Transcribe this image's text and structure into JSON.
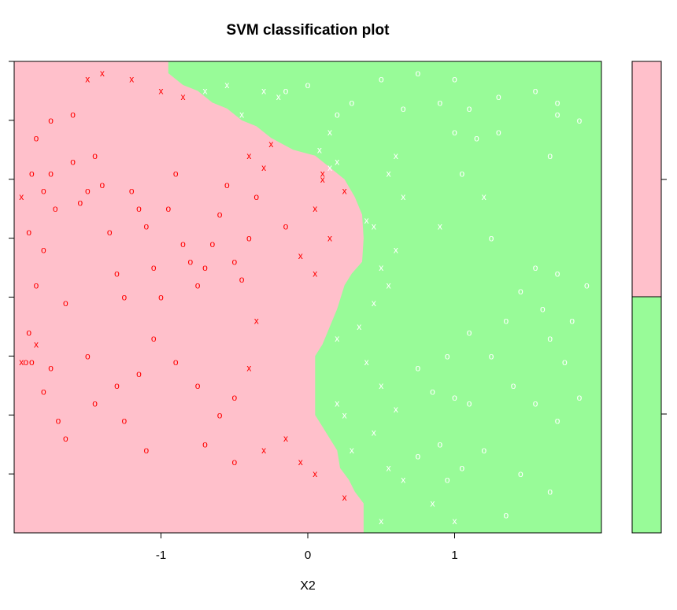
{
  "chart_data": {
    "type": "scatter",
    "title": "SVM classification plot",
    "xlabel": "X2",
    "ylabel": "",
    "xlim": [
      -2.0,
      2.0
    ],
    "ylim": [
      -2.0,
      2.0
    ],
    "x_ticks": [
      -1,
      0,
      1
    ],
    "colors": {
      "region_pink": "#ffc0cb",
      "region_green": "#98fb98",
      "mark_red": "#ff0000",
      "mark_white": "#ffffff",
      "axis": "#000000"
    },
    "boundary": [
      [
        -0.95,
        2.0
      ],
      [
        -0.95,
        1.9
      ],
      [
        -0.85,
        1.8
      ],
      [
        -0.75,
        1.75
      ],
      [
        -0.65,
        1.65
      ],
      [
        -0.55,
        1.6
      ],
      [
        -0.45,
        1.5
      ],
      [
        -0.35,
        1.45
      ],
      [
        -0.25,
        1.35
      ],
      [
        -0.1,
        1.25
      ],
      [
        0.05,
        1.2
      ],
      [
        0.15,
        1.1
      ],
      [
        0.25,
        1.0
      ],
      [
        0.32,
        0.85
      ],
      [
        0.37,
        0.7
      ],
      [
        0.38,
        0.5
      ],
      [
        0.37,
        0.3
      ],
      [
        0.3,
        0.2
      ],
      [
        0.25,
        0.1
      ],
      [
        0.2,
        -0.1
      ],
      [
        0.15,
        -0.25
      ],
      [
        0.1,
        -0.4
      ],
      [
        0.05,
        -0.5
      ],
      [
        0.05,
        -1.0
      ],
      [
        0.1,
        -1.1
      ],
      [
        0.15,
        -1.2
      ],
      [
        0.2,
        -1.3
      ],
      [
        0.22,
        -1.45
      ],
      [
        0.28,
        -1.55
      ],
      [
        0.32,
        -1.65
      ],
      [
        0.38,
        -1.75
      ],
      [
        0.38,
        -2.0
      ]
    ],
    "legend_classes": [
      "pink",
      "green"
    ],
    "points": [
      {
        "x": -1.95,
        "y": 0.85,
        "label": "x"
      },
      {
        "x": -1.9,
        "y": 0.55,
        "label": "o"
      },
      {
        "x": -1.88,
        "y": 1.05,
        "label": "o"
      },
      {
        "x": -1.85,
        "y": 1.35,
        "label": "o"
      },
      {
        "x": -1.8,
        "y": 0.9,
        "label": "o"
      },
      {
        "x": -1.75,
        "y": 1.05,
        "label": "o"
      },
      {
        "x": -1.72,
        "y": 0.75,
        "label": "o"
      },
      {
        "x": -1.8,
        "y": 0.4,
        "label": "o"
      },
      {
        "x": -1.85,
        "y": 0.1,
        "label": "o"
      },
      {
        "x": -1.9,
        "y": -0.3,
        "label": "o"
      },
      {
        "x": -1.95,
        "y": -0.55,
        "label": "x"
      },
      {
        "x": -1.92,
        "y": -0.55,
        "label": "o"
      },
      {
        "x": -1.88,
        "y": -0.55,
        "label": "o"
      },
      {
        "x": -1.8,
        "y": -0.8,
        "label": "o"
      },
      {
        "x": -1.75,
        "y": -0.6,
        "label": "o"
      },
      {
        "x": -1.7,
        "y": -1.05,
        "label": "o"
      },
      {
        "x": -1.65,
        "y": -1.2,
        "label": "o"
      },
      {
        "x": -1.6,
        "y": 1.15,
        "label": "o"
      },
      {
        "x": -1.55,
        "y": 0.8,
        "label": "o"
      },
      {
        "x": -1.5,
        "y": 0.9,
        "label": "o"
      },
      {
        "x": -1.45,
        "y": 1.2,
        "label": "o"
      },
      {
        "x": -1.4,
        "y": 0.95,
        "label": "o"
      },
      {
        "x": -1.35,
        "y": 0.55,
        "label": "o"
      },
      {
        "x": -1.3,
        "y": 0.2,
        "label": "o"
      },
      {
        "x": -1.25,
        "y": 0.0,
        "label": "o"
      },
      {
        "x": -1.2,
        "y": 0.9,
        "label": "o"
      },
      {
        "x": -1.15,
        "y": 0.75,
        "label": "o"
      },
      {
        "x": -1.1,
        "y": 0.6,
        "label": "o"
      },
      {
        "x": -1.05,
        "y": 0.25,
        "label": "o"
      },
      {
        "x": -1.0,
        "y": 0.0,
        "label": "o"
      },
      {
        "x": -0.95,
        "y": 0.75,
        "label": "o"
      },
      {
        "x": -0.9,
        "y": 1.05,
        "label": "o"
      },
      {
        "x": -0.85,
        "y": 0.45,
        "label": "o"
      },
      {
        "x": -0.8,
        "y": 0.3,
        "label": "o"
      },
      {
        "x": -0.75,
        "y": 0.1,
        "label": "o"
      },
      {
        "x": -0.7,
        "y": 0.25,
        "label": "o"
      },
      {
        "x": -0.65,
        "y": 0.45,
        "label": "o"
      },
      {
        "x": -0.6,
        "y": 0.7,
        "label": "o"
      },
      {
        "x": -0.55,
        "y": 0.95,
        "label": "o"
      },
      {
        "x": -0.5,
        "y": 0.3,
        "label": "o"
      },
      {
        "x": -0.45,
        "y": 0.15,
        "label": "o"
      },
      {
        "x": -0.4,
        "y": 0.5,
        "label": "o"
      },
      {
        "x": -0.35,
        "y": 0.85,
        "label": "o"
      },
      {
        "x": -0.3,
        "y": 1.1,
        "label": "x"
      },
      {
        "x": -0.25,
        "y": 1.3,
        "label": "x"
      },
      {
        "x": -0.15,
        "y": 0.6,
        "label": "o"
      },
      {
        "x": 0.05,
        "y": 0.75,
        "label": "x"
      },
      {
        "x": 0.1,
        "y": 1.0,
        "label": "x"
      },
      {
        "x": 0.15,
        "y": 1.1,
        "label": "x"
      },
      {
        "x": 0.2,
        "y": 1.15,
        "label": "x"
      },
      {
        "x": 0.25,
        "y": 0.9,
        "label": "x"
      },
      {
        "x": 0.15,
        "y": 0.5,
        "label": "x"
      },
      {
        "x": 0.05,
        "y": 0.2,
        "label": "x"
      },
      {
        "x": 0.4,
        "y": 0.65,
        "label": "x"
      },
      {
        "x": 0.45,
        "y": 0.6,
        "label": "x"
      },
      {
        "x": -1.5,
        "y": 1.85,
        "label": "x"
      },
      {
        "x": -1.4,
        "y": 1.9,
        "label": "x"
      },
      {
        "x": -1.2,
        "y": 1.85,
        "label": "x"
      },
      {
        "x": -1.0,
        "y": 1.75,
        "label": "x"
      },
      {
        "x": -1.6,
        "y": 1.55,
        "label": "o"
      },
      {
        "x": -1.75,
        "y": 1.5,
        "label": "o"
      },
      {
        "x": -1.85,
        "y": -0.4,
        "label": "x"
      },
      {
        "x": -1.5,
        "y": -0.5,
        "label": "o"
      },
      {
        "x": -1.3,
        "y": -0.75,
        "label": "o"
      },
      {
        "x": -1.15,
        "y": -0.65,
        "label": "o"
      },
      {
        "x": -1.05,
        "y": -0.35,
        "label": "o"
      },
      {
        "x": -0.9,
        "y": -0.55,
        "label": "o"
      },
      {
        "x": -0.75,
        "y": -0.75,
        "label": "o"
      },
      {
        "x": -0.6,
        "y": -1.0,
        "label": "o"
      },
      {
        "x": -0.5,
        "y": -0.85,
        "label": "o"
      },
      {
        "x": -0.4,
        "y": -0.6,
        "label": "x"
      },
      {
        "x": -0.3,
        "y": -1.3,
        "label": "x"
      },
      {
        "x": -0.15,
        "y": -1.2,
        "label": "x"
      },
      {
        "x": -0.05,
        "y": -1.4,
        "label": "x"
      },
      {
        "x": -0.5,
        "y": -1.4,
        "label": "o"
      },
      {
        "x": -0.7,
        "y": -1.25,
        "label": "o"
      },
      {
        "x": -1.1,
        "y": -1.3,
        "label": "o"
      },
      {
        "x": -1.25,
        "y": -1.05,
        "label": "o"
      },
      {
        "x": -1.45,
        "y": -0.9,
        "label": "o"
      },
      {
        "x": -0.85,
        "y": 1.7,
        "label": "x"
      },
      {
        "x": -0.7,
        "y": 1.75,
        "label": "x"
      },
      {
        "x": -0.55,
        "y": 1.8,
        "label": "x"
      },
      {
        "x": -0.45,
        "y": 1.55,
        "label": "x"
      },
      {
        "x": -0.3,
        "y": 1.75,
        "label": "x"
      },
      {
        "x": -0.2,
        "y": 1.7,
        "label": "x"
      },
      {
        "x": -0.15,
        "y": 1.75,
        "label": "o"
      },
      {
        "x": 0.0,
        "y": 1.8,
        "label": "o"
      },
      {
        "x": 0.15,
        "y": 1.4,
        "label": "x"
      },
      {
        "x": 0.2,
        "y": 1.55,
        "label": "o"
      },
      {
        "x": 0.3,
        "y": 1.65,
        "label": "o"
      },
      {
        "x": 0.5,
        "y": 1.85,
        "label": "o"
      },
      {
        "x": 0.75,
        "y": 1.9,
        "label": "o"
      },
      {
        "x": 1.0,
        "y": 1.85,
        "label": "o"
      },
      {
        "x": 0.65,
        "y": 1.6,
        "label": "o"
      },
      {
        "x": 0.9,
        "y": 1.65,
        "label": "o"
      },
      {
        "x": 1.1,
        "y": 1.6,
        "label": "o"
      },
      {
        "x": 1.3,
        "y": 1.7,
        "label": "o"
      },
      {
        "x": 1.55,
        "y": 1.75,
        "label": "o"
      },
      {
        "x": 1.7,
        "y": 1.65,
        "label": "o"
      },
      {
        "x": 1.85,
        "y": 1.5,
        "label": "o"
      },
      {
        "x": 1.7,
        "y": 1.55,
        "label": "o"
      },
      {
        "x": 1.0,
        "y": 1.4,
        "label": "o"
      },
      {
        "x": 1.15,
        "y": 1.35,
        "label": "o"
      },
      {
        "x": 1.3,
        "y": 1.4,
        "label": "o"
      },
      {
        "x": 0.6,
        "y": 1.2,
        "label": "x"
      },
      {
        "x": 0.55,
        "y": 1.05,
        "label": "x"
      },
      {
        "x": 0.65,
        "y": 0.85,
        "label": "x"
      },
      {
        "x": 0.9,
        "y": 0.6,
        "label": "x"
      },
      {
        "x": 1.05,
        "y": 1.05,
        "label": "o"
      },
      {
        "x": 1.2,
        "y": 0.85,
        "label": "x"
      },
      {
        "x": 1.65,
        "y": 1.2,
        "label": "o"
      },
      {
        "x": 1.25,
        "y": 0.5,
        "label": "o"
      },
      {
        "x": 0.6,
        "y": 0.4,
        "label": "x"
      },
      {
        "x": 0.5,
        "y": 0.25,
        "label": "x"
      },
      {
        "x": 0.55,
        "y": 0.1,
        "label": "x"
      },
      {
        "x": 0.45,
        "y": -0.05,
        "label": "x"
      },
      {
        "x": 0.35,
        "y": -0.25,
        "label": "x"
      },
      {
        "x": 0.2,
        "y": -0.35,
        "label": "x"
      },
      {
        "x": 0.4,
        "y": -0.55,
        "label": "x"
      },
      {
        "x": 0.5,
        "y": -0.75,
        "label": "x"
      },
      {
        "x": 0.75,
        "y": -0.6,
        "label": "o"
      },
      {
        "x": 0.85,
        "y": -0.8,
        "label": "o"
      },
      {
        "x": 1.0,
        "y": -0.85,
        "label": "o"
      },
      {
        "x": 1.1,
        "y": -0.9,
        "label": "o"
      },
      {
        "x": 1.25,
        "y": -0.5,
        "label": "o"
      },
      {
        "x": 1.4,
        "y": -0.75,
        "label": "o"
      },
      {
        "x": 1.55,
        "y": -0.9,
        "label": "o"
      },
      {
        "x": 1.7,
        "y": -1.05,
        "label": "o"
      },
      {
        "x": 1.85,
        "y": -0.85,
        "label": "o"
      },
      {
        "x": 1.75,
        "y": -0.55,
        "label": "o"
      },
      {
        "x": 1.65,
        "y": -0.35,
        "label": "o"
      },
      {
        "x": 1.8,
        "y": -0.2,
        "label": "o"
      },
      {
        "x": 1.9,
        "y": 0.1,
        "label": "o"
      },
      {
        "x": 1.7,
        "y": 0.2,
        "label": "o"
      },
      {
        "x": 1.55,
        "y": 0.25,
        "label": "o"
      },
      {
        "x": 1.45,
        "y": 0.05,
        "label": "o"
      },
      {
        "x": 1.6,
        "y": -0.1,
        "label": "o"
      },
      {
        "x": 1.35,
        "y": -0.2,
        "label": "o"
      },
      {
        "x": 1.1,
        "y": -0.3,
        "label": "o"
      },
      {
        "x": 0.95,
        "y": -0.5,
        "label": "o"
      },
      {
        "x": 0.6,
        "y": -0.95,
        "label": "x"
      },
      {
        "x": 0.45,
        "y": -1.15,
        "label": "x"
      },
      {
        "x": 0.25,
        "y": -1.0,
        "label": "x"
      },
      {
        "x": 0.3,
        "y": -1.3,
        "label": "x"
      },
      {
        "x": 0.55,
        "y": -1.45,
        "label": "x"
      },
      {
        "x": 0.75,
        "y": -1.35,
        "label": "o"
      },
      {
        "x": 0.9,
        "y": -1.25,
        "label": "o"
      },
      {
        "x": 1.05,
        "y": -1.45,
        "label": "o"
      },
      {
        "x": 1.2,
        "y": -1.3,
        "label": "o"
      },
      {
        "x": 1.45,
        "y": -1.5,
        "label": "o"
      },
      {
        "x": 1.65,
        "y": -1.65,
        "label": "o"
      },
      {
        "x": 0.95,
        "y": -1.55,
        "label": "o"
      },
      {
        "x": 0.65,
        "y": -1.55,
        "label": "x"
      },
      {
        "x": 0.25,
        "y": -1.7,
        "label": "x"
      },
      {
        "x": 0.5,
        "y": -1.9,
        "label": "x"
      },
      {
        "x": 0.85,
        "y": -1.75,
        "label": "x"
      },
      {
        "x": 1.0,
        "y": -1.9,
        "label": "x"
      },
      {
        "x": 1.35,
        "y": -1.85,
        "label": "o"
      },
      {
        "x": -0.4,
        "y": 1.2,
        "label": "x"
      },
      {
        "x": 0.08,
        "y": 1.25,
        "label": "x"
      },
      {
        "x": 0.1,
        "y": 1.05,
        "label": "x"
      },
      {
        "x": -0.05,
        "y": 0.35,
        "label": "x"
      },
      {
        "x": -0.35,
        "y": -0.2,
        "label": "x"
      },
      {
        "x": 0.2,
        "y": -0.9,
        "label": "x"
      },
      {
        "x": 0.05,
        "y": -1.5,
        "label": "x"
      },
      {
        "x": -1.65,
        "y": -0.05,
        "label": "o"
      }
    ]
  }
}
